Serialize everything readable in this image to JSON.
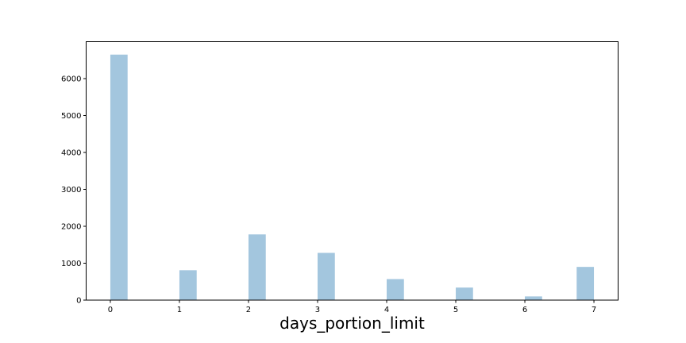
{
  "chart_data": {
    "type": "bar",
    "title": "",
    "xlabel": "days_portion_limit",
    "ylabel": "",
    "bar_color": "#a3c6de",
    "grid": false,
    "legend": "none",
    "xlim": [
      -0.35,
      7.35
    ],
    "ylim": [
      0,
      7000
    ],
    "x_ticks": [
      0,
      1,
      2,
      3,
      4,
      5,
      6,
      7
    ],
    "x_tick_labels": [
      "0",
      "1",
      "2",
      "3",
      "4",
      "5",
      "6",
      "7"
    ],
    "y_ticks": [
      0,
      1000,
      2000,
      3000,
      4000,
      5000,
      6000
    ],
    "y_tick_labels": [
      "0",
      "1000",
      "2000",
      "3000",
      "4000",
      "5000",
      "6000"
    ],
    "bins": [
      {
        "x0": 0.0,
        "x1": 0.25,
        "value": 6650
      },
      {
        "x0": 1.0,
        "x1": 1.25,
        "value": 810
      },
      {
        "x0": 2.0,
        "x1": 2.25,
        "value": 1780
      },
      {
        "x0": 3.0,
        "x1": 3.25,
        "value": 1280
      },
      {
        "x0": 4.0,
        "x1": 4.25,
        "value": 570
      },
      {
        "x0": 5.0,
        "x1": 5.25,
        "value": 340
      },
      {
        "x0": 6.0,
        "x1": 6.25,
        "value": 100
      },
      {
        "x0": 6.75,
        "x1": 7.0,
        "value": 900
      }
    ]
  }
}
